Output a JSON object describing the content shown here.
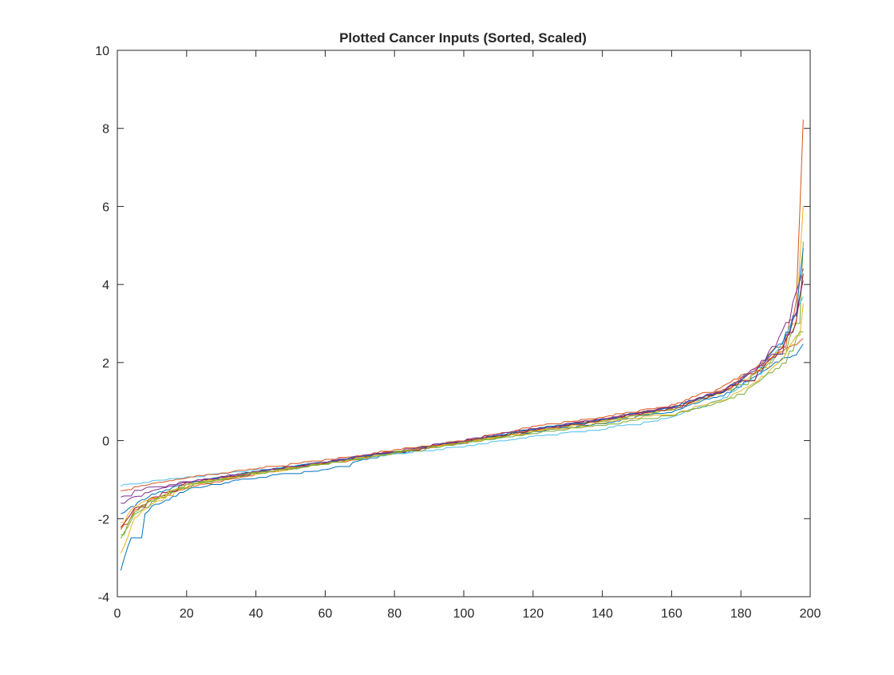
{
  "chart_data": {
    "type": "line",
    "title": "Plotted Cancer Inputs (Sorted, Scaled)",
    "xlabel": "",
    "ylabel": "",
    "xlim": [
      0,
      200
    ],
    "ylim": [
      -4,
      10
    ],
    "xticks": [
      0,
      20,
      40,
      60,
      80,
      100,
      120,
      140,
      160,
      180,
      200
    ],
    "yticks": [
      -4,
      -2,
      0,
      2,
      4,
      6,
      8,
      10
    ],
    "xtick_labels": [
      "0",
      "20",
      "40",
      "60",
      "80",
      "100",
      "120",
      "140",
      "160",
      "180",
      "200"
    ],
    "ytick_labels": [
      "-4",
      "-2",
      "0",
      "2",
      "4",
      "6",
      "8",
      "10"
    ],
    "grid": false,
    "legend": "none",
    "num_points_per_series": 198,
    "series_colors": [
      "#0072BD",
      "#D95319",
      "#EDB120",
      "#7E2F8E",
      "#77AC30",
      "#4DBEEE",
      "#A2142F"
    ],
    "series": [
      {
        "x": [
          1,
          5,
          10,
          20,
          40,
          60,
          80,
          100,
          120,
          140,
          160,
          175,
          185,
          192,
          196,
          198
        ],
        "values": [
          -3.3,
          -2.2,
          -1.7,
          -1.25,
          -0.95,
          -0.75,
          -0.3,
          -0.05,
          0.2,
          0.45,
          0.75,
          1.2,
          1.7,
          2.1,
          2.2,
          2.5
        ]
      },
      {
        "x": [
          1,
          5,
          10,
          20,
          40,
          60,
          80,
          100,
          120,
          140,
          160,
          175,
          185,
          192,
          196,
          198
        ],
        "values": [
          -2.3,
          -1.8,
          -1.5,
          -1.2,
          -0.85,
          -0.6,
          -0.3,
          -0.05,
          0.25,
          0.55,
          0.85,
          1.3,
          1.9,
          2.6,
          3.6,
          8.2
        ]
      },
      {
        "x": [
          1,
          5,
          10,
          20,
          40,
          60,
          80,
          100,
          120,
          140,
          160,
          175,
          185,
          192,
          196,
          198
        ],
        "values": [
          -2.9,
          -2.0,
          -1.6,
          -1.15,
          -0.85,
          -0.6,
          -0.3,
          -0.05,
          0.25,
          0.5,
          0.8,
          1.25,
          1.8,
          2.4,
          3.2,
          6.0
        ]
      },
      {
        "x": [
          1,
          5,
          10,
          20,
          40,
          60,
          80,
          100,
          120,
          140,
          160,
          175,
          185,
          192,
          196,
          198
        ],
        "values": [
          -1.45,
          -1.3,
          -1.2,
          -1.05,
          -0.8,
          -0.55,
          -0.28,
          -0.02,
          0.3,
          0.55,
          0.85,
          1.3,
          1.9,
          2.8,
          3.8,
          4.4
        ]
      },
      {
        "x": [
          1,
          5,
          10,
          20,
          40,
          60,
          80,
          100,
          120,
          140,
          160,
          175,
          185,
          192,
          196,
          198
        ],
        "values": [
          -2.5,
          -1.9,
          -1.55,
          -1.15,
          -0.85,
          -0.6,
          -0.3,
          -0.05,
          0.25,
          0.5,
          0.8,
          1.25,
          1.75,
          2.3,
          3.0,
          5.1
        ]
      },
      {
        "x": [
          1,
          5,
          10,
          20,
          40,
          60,
          80,
          100,
          120,
          140,
          160,
          175,
          185,
          192,
          196,
          198
        ],
        "values": [
          -1.15,
          -1.1,
          -1.05,
          -0.95,
          -0.75,
          -0.55,
          -0.35,
          -0.15,
          0.1,
          0.3,
          0.6,
          1.1,
          1.7,
          2.5,
          3.3,
          3.7
        ]
      },
      {
        "x": [
          1,
          5,
          10,
          20,
          40,
          60,
          80,
          100,
          120,
          140,
          160,
          175,
          185,
          192,
          196,
          198
        ],
        "values": [
          -2.2,
          -1.75,
          -1.45,
          -1.1,
          -0.8,
          -0.58,
          -0.28,
          -0.03,
          0.28,
          0.52,
          0.82,
          1.25,
          1.8,
          2.4,
          3.1,
          4.3
        ]
      },
      {
        "x": [
          1,
          5,
          10,
          20,
          40,
          60,
          80,
          100,
          120,
          140,
          160,
          175,
          185,
          192,
          196,
          198
        ],
        "values": [
          -1.9,
          -1.6,
          -1.4,
          -1.1,
          -0.8,
          -0.55,
          -0.28,
          -0.02,
          0.3,
          0.55,
          0.85,
          1.3,
          1.85,
          2.6,
          3.4,
          4.9
        ]
      },
      {
        "x": [
          1,
          5,
          10,
          20,
          40,
          60,
          80,
          100,
          120,
          140,
          160,
          175,
          185,
          192,
          196,
          198
        ],
        "values": [
          -1.3,
          -1.2,
          -1.1,
          -0.95,
          -0.72,
          -0.5,
          -0.25,
          0.0,
          0.35,
          0.6,
          0.9,
          1.4,
          1.9,
          2.3,
          2.5,
          2.6
        ]
      },
      {
        "x": [
          1,
          5,
          10,
          20,
          40,
          60,
          80,
          100,
          120,
          140,
          160,
          175,
          185,
          192,
          196,
          198
        ],
        "values": [
          -2.1,
          -1.7,
          -1.45,
          -1.12,
          -0.82,
          -0.58,
          -0.3,
          -0.05,
          0.22,
          0.45,
          0.7,
          1.05,
          1.55,
          2.1,
          2.7,
          3.5
        ]
      },
      {
        "x": [
          1,
          5,
          10,
          20,
          40,
          60,
          80,
          100,
          120,
          140,
          160,
          175,
          185,
          192,
          196,
          198
        ],
        "values": [
          -1.6,
          -1.45,
          -1.3,
          -1.08,
          -0.8,
          -0.55,
          -0.27,
          0.0,
          0.3,
          0.55,
          0.85,
          1.3,
          1.85,
          2.5,
          3.3,
          4.1
        ]
      },
      {
        "x": [
          1,
          5,
          10,
          20,
          40,
          60,
          80,
          100,
          120,
          140,
          160,
          175,
          185,
          192,
          196,
          198
        ],
        "values": [
          -2.4,
          -1.85,
          -1.5,
          -1.13,
          -0.83,
          -0.6,
          -0.32,
          -0.08,
          0.18,
          0.4,
          0.65,
          1.0,
          1.5,
          2.0,
          2.6,
          3.0
        ]
      }
    ]
  }
}
